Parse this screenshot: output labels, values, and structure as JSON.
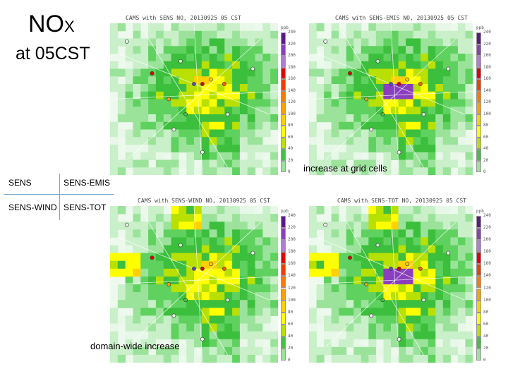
{
  "title": {
    "species": "NO",
    "species_sub": "X",
    "time": "at 05CST"
  },
  "legend": {
    "top_left": "SENS",
    "top_right": "SENS-EMIS",
    "bottom_left": "SENS-WIND",
    "bottom_right": "SENS-TOT"
  },
  "colorbar": {
    "unit": "ppb",
    "ticks": [
      "240",
      "220",
      "200",
      "180",
      "160",
      "140",
      "120",
      "100",
      "80",
      "60",
      "40",
      "20",
      "0"
    ],
    "colors": [
      "#5a1a8c",
      "#8a3fbf",
      "#b07ad8",
      "#e00000",
      "#f04000",
      "#ff7a00",
      "#ff9f00",
      "#ffd000",
      "#ffff00",
      "#b8e000",
      "#44c144",
      "#9be39b",
      "#e8f8e8"
    ]
  },
  "panels": [
    {
      "id": "sens",
      "title": "CAMS with SENS NO, 20130925 05 CST"
    },
    {
      "id": "sens-emis",
      "title": "CAMS with SENS-EMIS NO, 20130925 05 CST"
    },
    {
      "id": "sens-wind",
      "title": "CAMS with SENS-WIND NO, 20130925 05 CST"
    },
    {
      "id": "sens-tot",
      "title": "CAMS with SENS-TOT NO, 20130925 05 CST"
    }
  ],
  "annotations": {
    "grid": "increase at grid cells",
    "domain": "domain-wide increase"
  }
}
